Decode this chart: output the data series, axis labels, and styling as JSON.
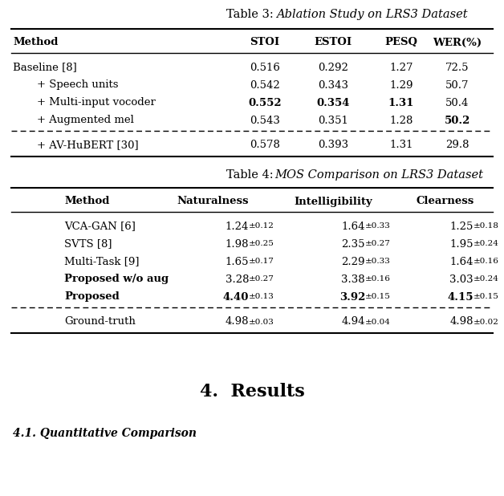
{
  "table3_title_plain": "Table 3: ",
  "table3_title_italic": "Ablation Study on LRS3 Dataset",
  "table3_headers": [
    "Method",
    "STOI",
    "ESTOI",
    "PESQ",
    "WER(%)"
  ],
  "table3_rows": [
    [
      "Baseline [8]",
      "0.516",
      "0.292",
      "1.27",
      "72.5",
      false,
      false,
      false,
      false,
      false
    ],
    [
      "+ Speech units",
      "0.542",
      "0.343",
      "1.29",
      "50.7",
      false,
      false,
      false,
      false,
      false
    ],
    [
      "+ Multi-input vocoder",
      "0.552",
      "0.354",
      "1.31",
      "50.4",
      false,
      true,
      true,
      true,
      false
    ],
    [
      "+ Augmented mel",
      "0.543",
      "0.351",
      "1.28",
      "50.2",
      false,
      false,
      false,
      false,
      true
    ]
  ],
  "table3_bottom_row": [
    "+ AV-HuBERT [30]",
    "0.578",
    "0.393",
    "1.31",
    "29.8"
  ],
  "table3_row_indent": [
    false,
    true,
    true,
    true
  ],
  "table4_title_plain": "Table 4: ",
  "table4_title_italic": "MOS Comparison on LRS3 Dataset",
  "table4_headers": [
    "Method",
    "Naturalness",
    "Intelligibility",
    "Clearness"
  ],
  "table4_rows": [
    {
      "method": "VCA-GAN [6]",
      "nat": "1.24",
      "nat_std": "0.12",
      "intel": "1.64",
      "intel_std": "0.33",
      "clear": "1.25",
      "clear_std": "0.18",
      "bold_method": false,
      "bold_vals": false
    },
    {
      "method": "SVTS [8]",
      "nat": "1.98",
      "nat_std": "0.25",
      "intel": "2.35",
      "intel_std": "0.27",
      "clear": "1.95",
      "clear_std": "0.24",
      "bold_method": false,
      "bold_vals": false
    },
    {
      "method": "Multi-Task [9]",
      "nat": "1.65",
      "nat_std": "0.17",
      "intel": "2.29",
      "intel_std": "0.33",
      "clear": "1.64",
      "clear_std": "0.16",
      "bold_method": false,
      "bold_vals": false
    },
    {
      "method": "Proposed w/o aug",
      "nat": "3.28",
      "nat_std": "0.27",
      "intel": "3.38",
      "intel_std": "0.16",
      "clear": "3.03",
      "clear_std": "0.24",
      "bold_method": true,
      "bold_vals": false
    },
    {
      "method": "Proposed",
      "nat": "4.40",
      "nat_std": "0.13",
      "intel": "3.92",
      "intel_std": "0.15",
      "clear": "4.15",
      "clear_std": "0.15",
      "bold_method": true,
      "bold_vals": true
    }
  ],
  "table4_bottom_row": {
    "method": "Ground-truth",
    "nat": "4.98",
    "nat_std": "0.03",
    "intel": "4.94",
    "intel_std": "0.04",
    "clear": "4.98",
    "clear_std": "0.02"
  },
  "section_title": "4.  Results",
  "section_subtitle": "4.1. Quantitative Comparison",
  "bg_color": "#ffffff"
}
